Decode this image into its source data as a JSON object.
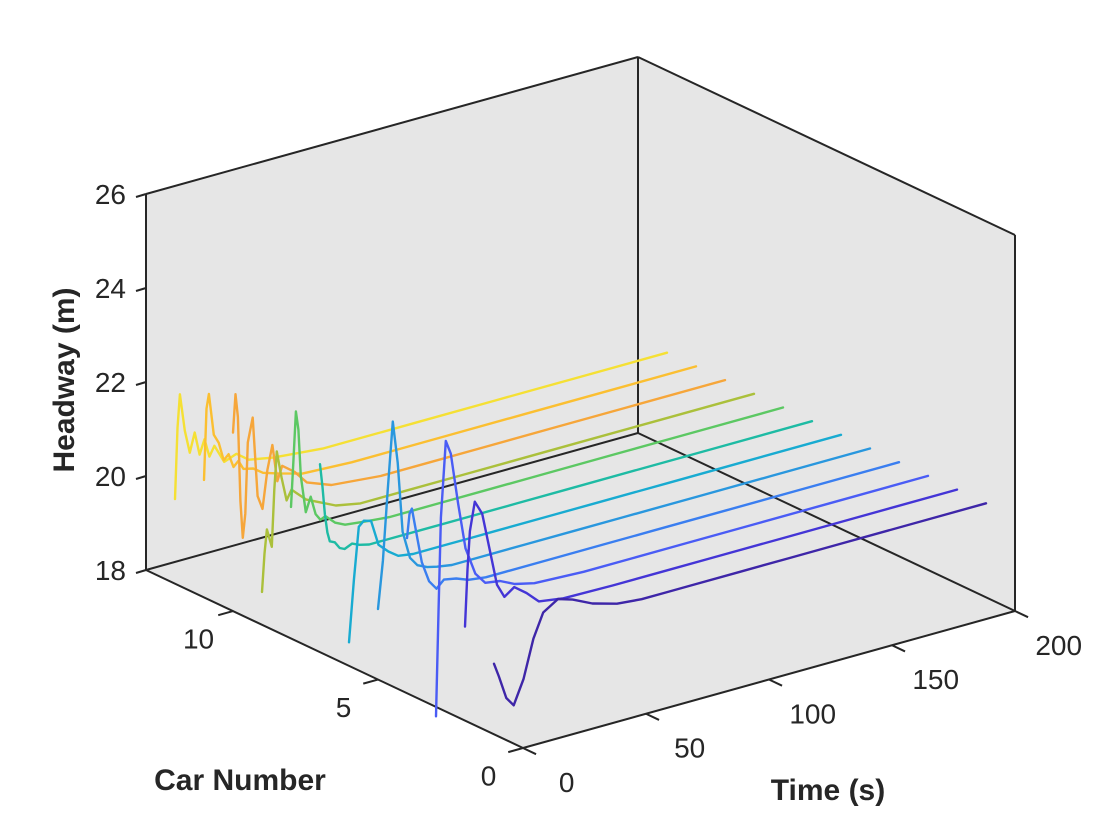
{
  "chart_data": {
    "type": "line",
    "subtype": "3d-waterfall",
    "title": "",
    "xlabel": "Time (s)",
    "ylabel": "Car Number",
    "zlabel": "Headway (m)",
    "xlim": [
      0,
      200
    ],
    "ylim": [
      0,
      13
    ],
    "zlim": [
      18,
      26
    ],
    "xticks": [
      "0",
      "50",
      "100",
      "150",
      "200"
    ],
    "yticks": [
      "0",
      "5",
      "10"
    ],
    "zticks": [
      "18",
      "20",
      "22",
      "24",
      "26"
    ],
    "grid": false,
    "background": "#e6e6e6",
    "series": [
      {
        "car": 1,
        "color": "#3e26a8",
        "x": [
          0,
          2,
          5,
          8,
          12,
          16,
          20,
          26,
          32,
          40,
          50,
          60,
          70,
          80,
          100,
          120,
          140,
          160,
          180,
          200
        ],
        "values": [
          19.5,
          19.2,
          18.7,
          18.5,
          19.0,
          19.8,
          20.3,
          20.5,
          20.4,
          20.2,
          20.05,
          20.0,
          20.0,
          20.0,
          20.0,
          20.0,
          20.0,
          20.0,
          20.0,
          20.0
        ]
      },
      {
        "car": 2,
        "color": "#4435d6",
        "x": [
          0,
          1,
          2,
          4,
          7,
          10,
          13,
          16,
          20,
          25,
          30,
          40,
          60,
          80,
          100,
          130,
          160,
          200
        ],
        "values": [
          20.0,
          21.2,
          22.0,
          22.6,
          22.3,
          21.5,
          20.7,
          20.4,
          20.55,
          20.35,
          20.1,
          20.02,
          20.0,
          20.0,
          20.0,
          20.0,
          20.0,
          20.0
        ]
      },
      {
        "car": 3,
        "color": "#4a5cf5",
        "x": [
          0,
          1,
          2,
          4,
          6,
          9,
          12,
          16,
          20,
          26,
          32,
          40,
          60,
          80,
          100,
          130,
          160,
          200
        ],
        "values": [
          17.8,
          20.0,
          22.0,
          23.6,
          23.3,
          22.2,
          21.2,
          20.6,
          20.35,
          20.3,
          20.15,
          20.05,
          20.0,
          20.0,
          20.0,
          20.0,
          20.0,
          20.0
        ]
      },
      {
        "car": 4,
        "color": "#3a7ef0",
        "x": [
          0,
          1,
          2,
          4,
          6,
          9,
          12,
          15,
          20,
          25,
          32,
          40,
          60,
          80,
          100,
          130,
          160,
          200
        ],
        "values": [
          21.3,
          21.8,
          21.9,
          21.3,
          20.7,
          20.25,
          20.05,
          20.2,
          20.15,
          20.05,
          20.0,
          20.0,
          20.0,
          20.0,
          20.0,
          20.0,
          20.0,
          20.0
        ]
      },
      {
        "car": 5,
        "color": "#2997de",
        "x": [
          0,
          2,
          4,
          6,
          8,
          10,
          13,
          16,
          20,
          24,
          30,
          40,
          60,
          80,
          100,
          130,
          160,
          200
        ],
        "values": [
          19.5,
          20.5,
          22.0,
          23.4,
          22.5,
          21.0,
          20.4,
          20.2,
          20.1,
          20.05,
          20.0,
          20.0,
          20.0,
          20.0,
          20.0,
          20.0,
          20.0,
          20.0
        ]
      },
      {
        "car": 6,
        "color": "#18abd1",
        "x": [
          0,
          2,
          4,
          6,
          9,
          12,
          16,
          20,
          26,
          32,
          40,
          50,
          60,
          80,
          100,
          130,
          160,
          200
        ],
        "values": [
          18.5,
          19.8,
          20.9,
          21.0,
          20.95,
          20.4,
          20.2,
          20.05,
          20.0,
          20.0,
          20.0,
          20.0,
          20.0,
          20.0,
          20.0,
          20.0,
          20.0,
          20.0
        ]
      },
      {
        "car": 7,
        "color": "#1ebba4",
        "x": [
          0,
          1,
          2,
          3,
          4,
          6,
          8,
          10,
          13,
          16,
          20,
          30,
          40,
          60,
          80,
          100,
          130,
          160,
          200
        ],
        "values": [
          22.0,
          21.5,
          20.9,
          20.5,
          20.3,
          20.25,
          20.1,
          20.05,
          20.12,
          20.05,
          20.0,
          20.0,
          20.0,
          20.0,
          20.0,
          20.0,
          20.0,
          20.0,
          20.0
        ]
      },
      {
        "car": 8,
        "color": "#5cc863",
        "x": [
          0,
          1,
          2,
          3,
          4,
          6,
          8,
          10,
          12,
          14,
          18,
          22,
          30,
          40,
          60,
          80,
          100,
          130,
          160,
          200
        ],
        "values": [
          20.8,
          21.8,
          22.8,
          22.4,
          21.4,
          20.6,
          20.9,
          20.5,
          20.35,
          20.4,
          20.2,
          20.1,
          20.05,
          20.0,
          20.0,
          20.0,
          20.0,
          20.0,
          20.0,
          20.0
        ]
      },
      {
        "car": 9,
        "color": "#abc03b",
        "x": [
          0,
          1,
          2,
          4,
          5,
          6,
          8,
          10,
          12,
          14,
          18,
          22,
          30,
          40,
          60,
          80,
          100,
          130,
          160,
          200
        ],
        "values": [
          18.7,
          19.5,
          20.0,
          19.6,
          20.8,
          21.6,
          21.0,
          20.5,
          20.7,
          20.6,
          20.4,
          20.3,
          20.1,
          20.0,
          20.0,
          20.0,
          20.0,
          20.0,
          20.0,
          20.0
        ]
      },
      {
        "car": 10,
        "color": "#f6a63a",
        "x": [
          0,
          1,
          2,
          3,
          4,
          5,
          6,
          8,
          10,
          12,
          14,
          16,
          18,
          20,
          25,
          30,
          40,
          60,
          80,
          100,
          130,
          160,
          200
        ],
        "values": [
          21.8,
          22.6,
          22.1,
          20.3,
          19.5,
          20.0,
          21.5,
          22.0,
          20.3,
          20.0,
          20.8,
          21.3,
          20.5,
          20.8,
          20.6,
          20.3,
          20.1,
          20.0,
          20.0,
          20.0,
          20.0,
          20.0,
          20.0
        ]
      },
      {
        "car": 11,
        "color": "#fbbf31",
        "x": [
          0,
          1,
          2,
          4,
          6,
          8,
          10,
          12,
          14,
          16,
          20,
          24,
          30,
          40,
          60,
          80,
          100,
          130,
          160,
          200
        ],
        "values": [
          20.5,
          22.0,
          22.3,
          21.4,
          21.2,
          20.8,
          20.9,
          20.6,
          20.7,
          20.5,
          20.45,
          20.3,
          20.2,
          20.05,
          20.0,
          20.0,
          20.0,
          20.0,
          20.0,
          20.0
        ]
      },
      {
        "car": 12,
        "color": "#f5e034",
        "x": [
          0,
          1,
          2,
          4,
          6,
          8,
          10,
          12,
          14,
          16,
          20,
          25,
          30,
          40,
          60,
          80,
          100,
          130,
          160,
          200
        ],
        "values": [
          19.8,
          21.3,
          22.0,
          21.2,
          20.7,
          21.1,
          20.6,
          20.9,
          20.5,
          20.7,
          20.3,
          20.4,
          20.2,
          20.1,
          20.0,
          20.0,
          20.0,
          20.0,
          20.0,
          20.0
        ]
      }
    ]
  }
}
